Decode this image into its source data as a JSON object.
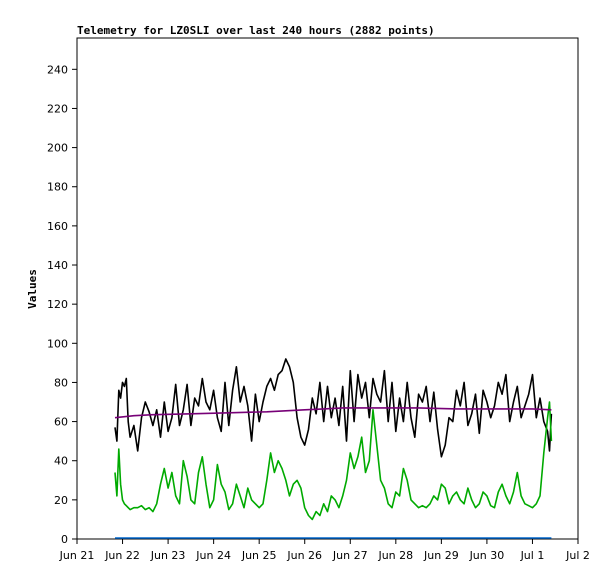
{
  "chart_data": {
    "type": "line",
    "title": "Telemetry for LZ0SLI over last 240 hours (2882 points)",
    "xlabel": "",
    "ylabel": "Values",
    "xlim": [
      0,
      264
    ],
    "ylim": [
      0,
      256
    ],
    "x_ticks": [
      {
        "label": "Jun 21",
        "x": 0
      },
      {
        "label": "Jun 22",
        "x": 24
      },
      {
        "label": "Jun 23",
        "x": 48
      },
      {
        "label": "Jun 24",
        "x": 72
      },
      {
        "label": "Jun 25",
        "x": 96
      },
      {
        "label": "Jun 26",
        "x": 120
      },
      {
        "label": "Jun 27",
        "x": 144
      },
      {
        "label": "Jun 28",
        "x": 168
      },
      {
        "label": "Jun 29",
        "x": 192
      },
      {
        "label": "Jun 30",
        "x": 216
      },
      {
        "label": "Jul 1",
        "x": 240
      },
      {
        "label": "Jul 2",
        "x": 264
      }
    ],
    "y_ticks": [
      0,
      20,
      40,
      60,
      80,
      100,
      120,
      140,
      160,
      180,
      200,
      220,
      240
    ],
    "grid": false,
    "series": [
      {
        "color": "#000000",
        "x": [
          20,
          21,
          22,
          23,
          24,
          25,
          26,
          27,
          28,
          30,
          32,
          34,
          36,
          38,
          40,
          42,
          44,
          46,
          48,
          50,
          52,
          54,
          56,
          58,
          60,
          62,
          64,
          66,
          68,
          70,
          72,
          74,
          76,
          78,
          80,
          82,
          84,
          86,
          88,
          90,
          92,
          94,
          96,
          98,
          100,
          102,
          104,
          106,
          108,
          110,
          112,
          114,
          116,
          118,
          120,
          122,
          124,
          126,
          128,
          130,
          132,
          134,
          136,
          138,
          140,
          142,
          144,
          146,
          148,
          150,
          152,
          154,
          156,
          158,
          160,
          162,
          164,
          166,
          168,
          170,
          172,
          174,
          176,
          178,
          180,
          182,
          184,
          186,
          188,
          190,
          192,
          194,
          196,
          198,
          200,
          202,
          204,
          206,
          208,
          210,
          212,
          214,
          216,
          218,
          220,
          222,
          224,
          226,
          228,
          230,
          232,
          234,
          236,
          238,
          240,
          242,
          244,
          246,
          248,
          249,
          250
        ],
        "values": [
          57,
          50,
          76,
          72,
          80,
          78,
          82,
          60,
          52,
          58,
          45,
          62,
          70,
          65,
          58,
          66,
          52,
          70,
          55,
          62,
          79,
          58,
          66,
          79,
          58,
          72,
          68,
          82,
          70,
          66,
          76,
          62,
          55,
          80,
          58,
          76,
          88,
          70,
          78,
          68,
          50,
          74,
          60,
          70,
          78,
          82,
          76,
          84,
          86,
          92,
          88,
          80,
          62,
          52,
          48,
          56,
          72,
          64,
          80,
          60,
          78,
          62,
          72,
          58,
          78,
          50,
          86,
          60,
          84,
          72,
          80,
          62,
          82,
          74,
          70,
          86,
          60,
          80,
          55,
          72,
          60,
          80,
          62,
          52,
          74,
          70,
          78,
          60,
          75,
          56,
          42,
          48,
          62,
          60,
          76,
          68,
          80,
          58,
          64,
          74,
          54,
          76,
          70,
          62,
          68,
          80,
          74,
          84,
          60,
          70,
          78,
          62,
          68,
          74,
          84,
          62,
          72,
          60,
          55,
          45,
          64
        ]
      },
      {
        "color": "#00aa00",
        "x": [
          20,
          21,
          22,
          23,
          24,
          25,
          26,
          28,
          30,
          32,
          34,
          36,
          38,
          40,
          42,
          44,
          46,
          48,
          50,
          52,
          54,
          56,
          58,
          60,
          62,
          64,
          66,
          68,
          70,
          72,
          74,
          76,
          78,
          80,
          82,
          84,
          86,
          88,
          90,
          92,
          94,
          96,
          98,
          100,
          102,
          104,
          106,
          108,
          110,
          112,
          114,
          116,
          118,
          120,
          122,
          124,
          126,
          128,
          130,
          132,
          134,
          136,
          138,
          140,
          142,
          144,
          146,
          148,
          150,
          152,
          154,
          156,
          158,
          160,
          162,
          164,
          166,
          168,
          170,
          172,
          174,
          176,
          178,
          180,
          182,
          184,
          186,
          188,
          190,
          192,
          194,
          196,
          198,
          200,
          202,
          204,
          206,
          208,
          210,
          212,
          214,
          216,
          218,
          220,
          222,
          224,
          226,
          228,
          230,
          232,
          234,
          236,
          238,
          240,
          242,
          244,
          246,
          248,
          249,
          250
        ],
        "values": [
          34,
          22,
          46,
          28,
          20,
          18,
          17,
          15,
          16,
          16,
          17,
          15,
          16,
          14,
          18,
          28,
          36,
          26,
          34,
          22,
          18,
          40,
          32,
          20,
          18,
          34,
          42,
          28,
          16,
          20,
          38,
          28,
          24,
          15,
          18,
          28,
          22,
          16,
          26,
          20,
          18,
          16,
          18,
          30,
          44,
          34,
          40,
          36,
          30,
          22,
          28,
          30,
          26,
          16,
          12,
          10,
          14,
          12,
          18,
          14,
          22,
          20,
          16,
          22,
          30,
          44,
          36,
          42,
          52,
          34,
          40,
          66,
          48,
          30,
          26,
          18,
          16,
          24,
          22,
          36,
          30,
          20,
          18,
          16,
          17,
          16,
          18,
          22,
          20,
          28,
          26,
          18,
          22,
          24,
          20,
          18,
          26,
          20,
          16,
          18,
          24,
          22,
          17,
          16,
          24,
          28,
          22,
          18,
          24,
          34,
          22,
          18,
          17,
          16,
          18,
          22,
          44,
          62,
          70,
          50
        ]
      },
      {
        "color": "#770077",
        "x": [
          20,
          30,
          40,
          60,
          80,
          100,
          120,
          130,
          140,
          150,
          160,
          180,
          200,
          220,
          240,
          250
        ],
        "values": [
          62,
          63,
          63.5,
          64,
          64.5,
          65,
          66,
          66.5,
          67,
          67,
          67,
          67,
          66.5,
          66.5,
          66.5,
          66
        ]
      },
      {
        "color": "#0066cc",
        "x": [
          20,
          250
        ],
        "values": [
          0.5,
          0.5
        ]
      }
    ]
  }
}
